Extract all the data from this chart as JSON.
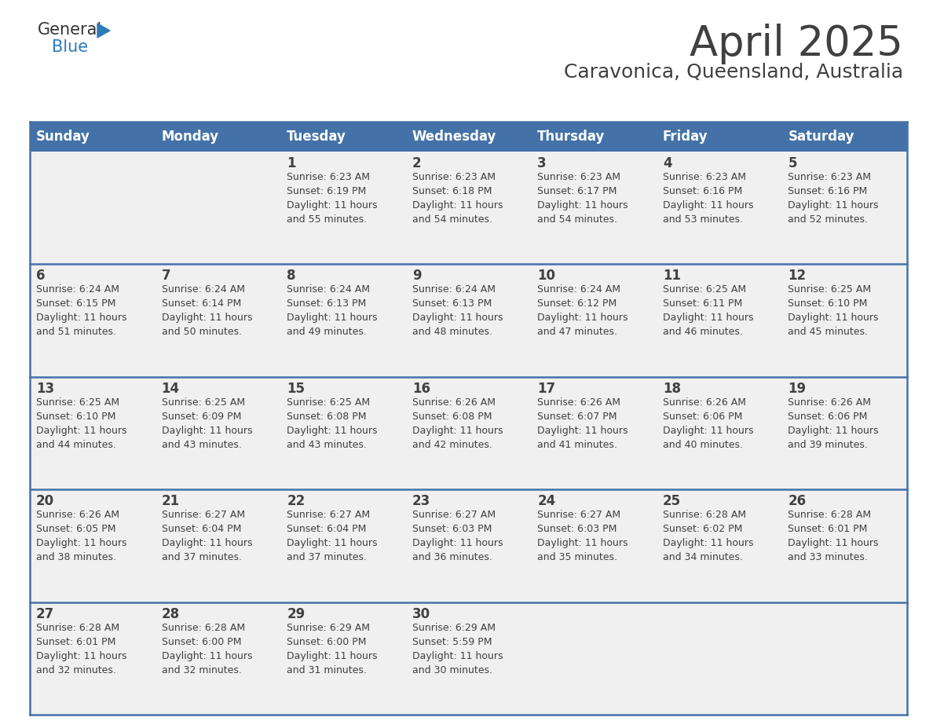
{
  "title": "April 2025",
  "subtitle": "Caravonica, Queensland, Australia",
  "header_bg_color": "#4472a8",
  "header_text_color": "#ffffff",
  "cell_bg_color": "#f0f0f0",
  "border_color": "#4472a8",
  "text_color": "#404040",
  "days_of_week": [
    "Sunday",
    "Monday",
    "Tuesday",
    "Wednesday",
    "Thursday",
    "Friday",
    "Saturday"
  ],
  "weeks": [
    [
      {
        "day": "",
        "info": ""
      },
      {
        "day": "",
        "info": ""
      },
      {
        "day": "1",
        "info": "Sunrise: 6:23 AM\nSunset: 6:19 PM\nDaylight: 11 hours\nand 55 minutes."
      },
      {
        "day": "2",
        "info": "Sunrise: 6:23 AM\nSunset: 6:18 PM\nDaylight: 11 hours\nand 54 minutes."
      },
      {
        "day": "3",
        "info": "Sunrise: 6:23 AM\nSunset: 6:17 PM\nDaylight: 11 hours\nand 54 minutes."
      },
      {
        "day": "4",
        "info": "Sunrise: 6:23 AM\nSunset: 6:16 PM\nDaylight: 11 hours\nand 53 minutes."
      },
      {
        "day": "5",
        "info": "Sunrise: 6:23 AM\nSunset: 6:16 PM\nDaylight: 11 hours\nand 52 minutes."
      }
    ],
    [
      {
        "day": "6",
        "info": "Sunrise: 6:24 AM\nSunset: 6:15 PM\nDaylight: 11 hours\nand 51 minutes."
      },
      {
        "day": "7",
        "info": "Sunrise: 6:24 AM\nSunset: 6:14 PM\nDaylight: 11 hours\nand 50 minutes."
      },
      {
        "day": "8",
        "info": "Sunrise: 6:24 AM\nSunset: 6:13 PM\nDaylight: 11 hours\nand 49 minutes."
      },
      {
        "day": "9",
        "info": "Sunrise: 6:24 AM\nSunset: 6:13 PM\nDaylight: 11 hours\nand 48 minutes."
      },
      {
        "day": "10",
        "info": "Sunrise: 6:24 AM\nSunset: 6:12 PM\nDaylight: 11 hours\nand 47 minutes."
      },
      {
        "day": "11",
        "info": "Sunrise: 6:25 AM\nSunset: 6:11 PM\nDaylight: 11 hours\nand 46 minutes."
      },
      {
        "day": "12",
        "info": "Sunrise: 6:25 AM\nSunset: 6:10 PM\nDaylight: 11 hours\nand 45 minutes."
      }
    ],
    [
      {
        "day": "13",
        "info": "Sunrise: 6:25 AM\nSunset: 6:10 PM\nDaylight: 11 hours\nand 44 minutes."
      },
      {
        "day": "14",
        "info": "Sunrise: 6:25 AM\nSunset: 6:09 PM\nDaylight: 11 hours\nand 43 minutes."
      },
      {
        "day": "15",
        "info": "Sunrise: 6:25 AM\nSunset: 6:08 PM\nDaylight: 11 hours\nand 43 minutes."
      },
      {
        "day": "16",
        "info": "Sunrise: 6:26 AM\nSunset: 6:08 PM\nDaylight: 11 hours\nand 42 minutes."
      },
      {
        "day": "17",
        "info": "Sunrise: 6:26 AM\nSunset: 6:07 PM\nDaylight: 11 hours\nand 41 minutes."
      },
      {
        "day": "18",
        "info": "Sunrise: 6:26 AM\nSunset: 6:06 PM\nDaylight: 11 hours\nand 40 minutes."
      },
      {
        "day": "19",
        "info": "Sunrise: 6:26 AM\nSunset: 6:06 PM\nDaylight: 11 hours\nand 39 minutes."
      }
    ],
    [
      {
        "day": "20",
        "info": "Sunrise: 6:26 AM\nSunset: 6:05 PM\nDaylight: 11 hours\nand 38 minutes."
      },
      {
        "day": "21",
        "info": "Sunrise: 6:27 AM\nSunset: 6:04 PM\nDaylight: 11 hours\nand 37 minutes."
      },
      {
        "day": "22",
        "info": "Sunrise: 6:27 AM\nSunset: 6:04 PM\nDaylight: 11 hours\nand 37 minutes."
      },
      {
        "day": "23",
        "info": "Sunrise: 6:27 AM\nSunset: 6:03 PM\nDaylight: 11 hours\nand 36 minutes."
      },
      {
        "day": "24",
        "info": "Sunrise: 6:27 AM\nSunset: 6:03 PM\nDaylight: 11 hours\nand 35 minutes."
      },
      {
        "day": "25",
        "info": "Sunrise: 6:28 AM\nSunset: 6:02 PM\nDaylight: 11 hours\nand 34 minutes."
      },
      {
        "day": "26",
        "info": "Sunrise: 6:28 AM\nSunset: 6:01 PM\nDaylight: 11 hours\nand 33 minutes."
      }
    ],
    [
      {
        "day": "27",
        "info": "Sunrise: 6:28 AM\nSunset: 6:01 PM\nDaylight: 11 hours\nand 32 minutes."
      },
      {
        "day": "28",
        "info": "Sunrise: 6:28 AM\nSunset: 6:00 PM\nDaylight: 11 hours\nand 32 minutes."
      },
      {
        "day": "29",
        "info": "Sunrise: 6:29 AM\nSunset: 6:00 PM\nDaylight: 11 hours\nand 31 minutes."
      },
      {
        "day": "30",
        "info": "Sunrise: 6:29 AM\nSunset: 5:59 PM\nDaylight: 11 hours\nand 30 minutes."
      },
      {
        "day": "",
        "info": ""
      },
      {
        "day": "",
        "info": ""
      },
      {
        "day": "",
        "info": ""
      }
    ]
  ],
  "logo_text_general": "General",
  "logo_text_blue": "Blue",
  "logo_color_general": "#333333",
  "logo_color_blue": "#2b7bb9",
  "logo_triangle_color": "#2b7bb9",
  "title_fontsize": 38,
  "subtitle_fontsize": 18,
  "header_fontsize": 12,
  "day_num_fontsize": 12,
  "info_fontsize": 9
}
